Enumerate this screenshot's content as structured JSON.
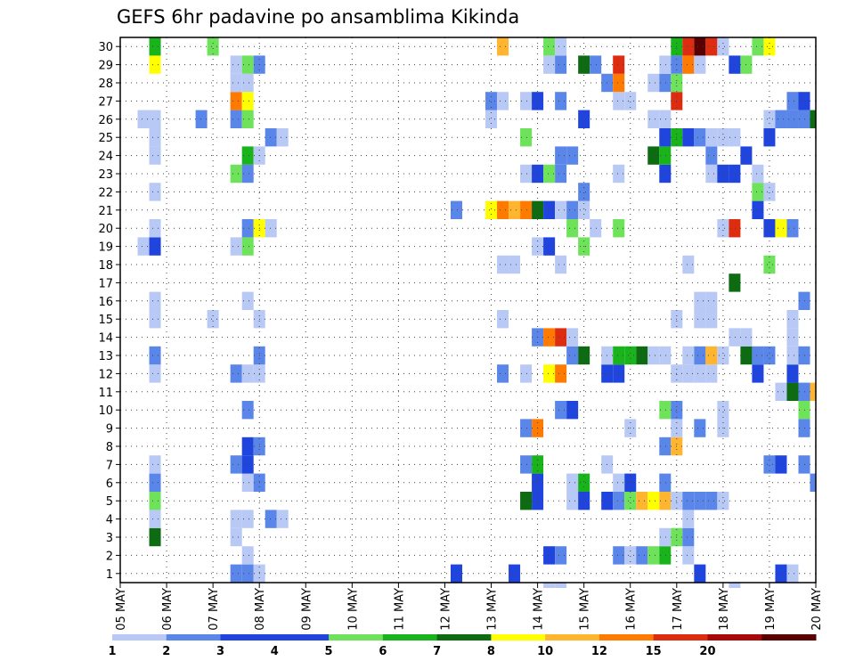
{
  "chart_data": {
    "type": "heatmap",
    "title": "GEFS 6hr padavine po ansamblima Kikinda",
    "y_tick_labels": [
      "1",
      "2",
      "3",
      "4",
      "5",
      "6",
      "7",
      "8",
      "9",
      "10",
      "11",
      "12",
      "13",
      "14",
      "15",
      "16",
      "17",
      "18",
      "19",
      "20",
      "21",
      "22",
      "23",
      "24",
      "25",
      "26",
      "27",
      "28",
      "29",
      "30"
    ],
    "x_tick_labels": [
      "05 MAY",
      "06 MAY",
      "07 MAY",
      "08 MAY",
      "09 MAY",
      "10 MAY",
      "11 MAY",
      "12 MAY",
      "13 MAY",
      "14 MAY",
      "15 MAY",
      "16 MAY",
      "17 MAY",
      "18 MAY",
      "19 MAY",
      "20 MAY"
    ],
    "x_unit": "6-hour step from 05 MAY 00Z",
    "y_unit": "ensemble member",
    "xlim": [
      0,
      60
    ],
    "ylim": [
      0.5,
      30.5
    ],
    "grid": true,
    "legend_position": "bottom",
    "color_scale": {
      "labels": [
        "1",
        "2",
        "3",
        "4",
        "5",
        "6",
        "7",
        "8",
        "10",
        "12",
        "15",
        "20"
      ],
      "colors": [
        "#b9c9f5",
        "#5b86e9",
        "#1f45de",
        "#1f45de",
        "#6ee25a",
        "#19b41c",
        "#0d6b12",
        "#ffff00",
        "#ffb530",
        "#ff7a00",
        "#dd2c10",
        "#a80a0a",
        "#5a0000"
      ]
    },
    "cells": [
      [
        37,
        0,
        1
      ],
      [
        38,
        0,
        1
      ],
      [
        53,
        0,
        1
      ],
      [
        10,
        1,
        2
      ],
      [
        11,
        1,
        2
      ],
      [
        12,
        1,
        1
      ],
      [
        29,
        1,
        3
      ],
      [
        34,
        1,
        3
      ],
      [
        50,
        1,
        3
      ],
      [
        57,
        1,
        3
      ],
      [
        58,
        1,
        1
      ],
      [
        11,
        2,
        1
      ],
      [
        37,
        2,
        4
      ],
      [
        38,
        2,
        2
      ],
      [
        43,
        2,
        2
      ],
      [
        44,
        2,
        1
      ],
      [
        45,
        2,
        2
      ],
      [
        46,
        2,
        5
      ],
      [
        47,
        2,
        6
      ],
      [
        49,
        2,
        1
      ],
      [
        3,
        3,
        7
      ],
      [
        10,
        3,
        1
      ],
      [
        47,
        3,
        1
      ],
      [
        48,
        3,
        5
      ],
      [
        49,
        3,
        2
      ],
      [
        10,
        4,
        1
      ],
      [
        11,
        4,
        1
      ],
      [
        13,
        4,
        2
      ],
      [
        14,
        4,
        1
      ],
      [
        49,
        4,
        1
      ],
      [
        3,
        4,
        1
      ],
      [
        3,
        5,
        5
      ],
      [
        35,
        5,
        7
      ],
      [
        36,
        5,
        3
      ],
      [
        39,
        5,
        1
      ],
      [
        40,
        5,
        3
      ],
      [
        42,
        5,
        3
      ],
      [
        43,
        5,
        2
      ],
      [
        44,
        5,
        5
      ],
      [
        45,
        5,
        10
      ],
      [
        46,
        5,
        8
      ],
      [
        47,
        5,
        10
      ],
      [
        48,
        5,
        1
      ],
      [
        49,
        5,
        2
      ],
      [
        50,
        5,
        2
      ],
      [
        51,
        5,
        2
      ],
      [
        52,
        5,
        1
      ],
      [
        3,
        6,
        2
      ],
      [
        11,
        6,
        1
      ],
      [
        12,
        6,
        2
      ],
      [
        36,
        6,
        3
      ],
      [
        39,
        6,
        1
      ],
      [
        40,
        6,
        6
      ],
      [
        43,
        6,
        1
      ],
      [
        44,
        6,
        3
      ],
      [
        47,
        6,
        2
      ],
      [
        60,
        6,
        2
      ],
      [
        3,
        7,
        1
      ],
      [
        10,
        7,
        2
      ],
      [
        11,
        7,
        3
      ],
      [
        35,
        7,
        2
      ],
      [
        36,
        7,
        6
      ],
      [
        42,
        7,
        1
      ],
      [
        56,
        7,
        2
      ],
      [
        57,
        7,
        3
      ],
      [
        59,
        7,
        2
      ],
      [
        11,
        8,
        3
      ],
      [
        12,
        8,
        2
      ],
      [
        47,
        8,
        2
      ],
      [
        48,
        8,
        10
      ],
      [
        35,
        9,
        2
      ],
      [
        36,
        9,
        14
      ],
      [
        44,
        9,
        1
      ],
      [
        48,
        9,
        1
      ],
      [
        50,
        9,
        2
      ],
      [
        52,
        9,
        1
      ],
      [
        59,
        9,
        2
      ],
      [
        11,
        10,
        2
      ],
      [
        38,
        10,
        2
      ],
      [
        39,
        10,
        3
      ],
      [
        47,
        10,
        5
      ],
      [
        48,
        10,
        2
      ],
      [
        52,
        10,
        1
      ],
      [
        59,
        10,
        5
      ],
      [
        57,
        11,
        1
      ],
      [
        58,
        11,
        1
      ],
      [
        59,
        11,
        1
      ],
      [
        58,
        11,
        7
      ],
      [
        59,
        11,
        2
      ],
      [
        60,
        11,
        10
      ],
      [
        3,
        12,
        1
      ],
      [
        10,
        12,
        2
      ],
      [
        11,
        12,
        1
      ],
      [
        12,
        12,
        1
      ],
      [
        33,
        12,
        2
      ],
      [
        35,
        12,
        1
      ],
      [
        37,
        12,
        8
      ],
      [
        38,
        12,
        12
      ],
      [
        42,
        12,
        3
      ],
      [
        43,
        12,
        3
      ],
      [
        48,
        12,
        1
      ],
      [
        49,
        12,
        1
      ],
      [
        50,
        12,
        1
      ],
      [
        51,
        12,
        1
      ],
      [
        55,
        12,
        3
      ],
      [
        58,
        12,
        3
      ],
      [
        3,
        13,
        2
      ],
      [
        12,
        13,
        2
      ],
      [
        39,
        13,
        2
      ],
      [
        40,
        13,
        7
      ],
      [
        42,
        13,
        1
      ],
      [
        43,
        13,
        6
      ],
      [
        44,
        13,
        6
      ],
      [
        45,
        13,
        7
      ],
      [
        46,
        13,
        1
      ],
      [
        47,
        13,
        1
      ],
      [
        49,
        13,
        1
      ],
      [
        50,
        13,
        2
      ],
      [
        51,
        13,
        10
      ],
      [
        52,
        13,
        1
      ],
      [
        54,
        13,
        7
      ],
      [
        55,
        13,
        2
      ],
      [
        56,
        13,
        2
      ],
      [
        58,
        13,
        1
      ],
      [
        59,
        13,
        2
      ],
      [
        37,
        14,
        12
      ],
      [
        38,
        14,
        15
      ],
      [
        36,
        14,
        2
      ],
      [
        39,
        14,
        1
      ],
      [
        54,
        14,
        1
      ],
      [
        53,
        14,
        1
      ],
      [
        58,
        14,
        1
      ],
      [
        3,
        15,
        1
      ],
      [
        8,
        15,
        1
      ],
      [
        12,
        15,
        1
      ],
      [
        33,
        15,
        1
      ],
      [
        48,
        15,
        1
      ],
      [
        50,
        15,
        1
      ],
      [
        51,
        15,
        1
      ],
      [
        58,
        15,
        1
      ],
      [
        3,
        16,
        1
      ],
      [
        11,
        16,
        1
      ],
      [
        50,
        16,
        1
      ],
      [
        51,
        16,
        1
      ],
      [
        59,
        16,
        2
      ],
      [
        53,
        17,
        7
      ],
      [
        33,
        18,
        1
      ],
      [
        34,
        18,
        1
      ],
      [
        38,
        18,
        1
      ],
      [
        49,
        18,
        1
      ],
      [
        56,
        18,
        5
      ],
      [
        2,
        19,
        1
      ],
      [
        3,
        19,
        3
      ],
      [
        10,
        19,
        1
      ],
      [
        11,
        19,
        5
      ],
      [
        36,
        19,
        1
      ],
      [
        37,
        19,
        3
      ],
      [
        40,
        19,
        5
      ],
      [
        3,
        20,
        1
      ],
      [
        11,
        20,
        2
      ],
      [
        12,
        20,
        8
      ],
      [
        13,
        20,
        1
      ],
      [
        39,
        20,
        5
      ],
      [
        41,
        20,
        1
      ],
      [
        43,
        20,
        5
      ],
      [
        52,
        20,
        1
      ],
      [
        53,
        20,
        15
      ],
      [
        56,
        20,
        3
      ],
      [
        57,
        20,
        8
      ],
      [
        58,
        20,
        2
      ],
      [
        29,
        21,
        2
      ],
      [
        32,
        21,
        8
      ],
      [
        33,
        21,
        12
      ],
      [
        34,
        21,
        10
      ],
      [
        35,
        21,
        12
      ],
      [
        36,
        21,
        7
      ],
      [
        37,
        21,
        3
      ],
      [
        38,
        21,
        1
      ],
      [
        39,
        21,
        2
      ],
      [
        40,
        21,
        1
      ],
      [
        55,
        21,
        3
      ],
      [
        3,
        22,
        1
      ],
      [
        40,
        22,
        2
      ],
      [
        55,
        22,
        5
      ],
      [
        56,
        22,
        1
      ],
      [
        10,
        23,
        5
      ],
      [
        11,
        23,
        2
      ],
      [
        35,
        23,
        1
      ],
      [
        36,
        23,
        3
      ],
      [
        37,
        23,
        5
      ],
      [
        38,
        23,
        2
      ],
      [
        43,
        23,
        1
      ],
      [
        47,
        23,
        3
      ],
      [
        51,
        23,
        1
      ],
      [
        52,
        23,
        3
      ],
      [
        53,
        23,
        3
      ],
      [
        55,
        23,
        1
      ],
      [
        3,
        24,
        1
      ],
      [
        11,
        24,
        6
      ],
      [
        12,
        24,
        1
      ],
      [
        38,
        24,
        2
      ],
      [
        39,
        24,
        2
      ],
      [
        46,
        24,
        7
      ],
      [
        47,
        24,
        6
      ],
      [
        51,
        24,
        2
      ],
      [
        54,
        24,
        3
      ],
      [
        3,
        25,
        1
      ],
      [
        13,
        25,
        2
      ],
      [
        14,
        25,
        1
      ],
      [
        35,
        25,
        5
      ],
      [
        47,
        25,
        3
      ],
      [
        48,
        25,
        6
      ],
      [
        49,
        25,
        3
      ],
      [
        50,
        25,
        2
      ],
      [
        51,
        25,
        1
      ],
      [
        52,
        25,
        1
      ],
      [
        53,
        25,
        1
      ],
      [
        56,
        25,
        3
      ],
      [
        2,
        26,
        1
      ],
      [
        3,
        26,
        1
      ],
      [
        7,
        26,
        2
      ],
      [
        10,
        26,
        2
      ],
      [
        11,
        26,
        5
      ],
      [
        32,
        26,
        1
      ],
      [
        40,
        26,
        3
      ],
      [
        46,
        26,
        1
      ],
      [
        47,
        26,
        1
      ],
      [
        56,
        26,
        1
      ],
      [
        57,
        26,
        2
      ],
      [
        58,
        26,
        2
      ],
      [
        59,
        26,
        2
      ],
      [
        60,
        26,
        7
      ],
      [
        10,
        27,
        12
      ],
      [
        11,
        27,
        8
      ],
      [
        32,
        27,
        2
      ],
      [
        33,
        27,
        1
      ],
      [
        35,
        27,
        1
      ],
      [
        36,
        27,
        3
      ],
      [
        38,
        27,
        2
      ],
      [
        43,
        27,
        1
      ],
      [
        44,
        27,
        1
      ],
      [
        48,
        27,
        15
      ],
      [
        58,
        27,
        2
      ],
      [
        59,
        27,
        3
      ],
      [
        10,
        28,
        1
      ],
      [
        11,
        28,
        1
      ],
      [
        42,
        28,
        2
      ],
      [
        43,
        28,
        12
      ],
      [
        46,
        28,
        1
      ],
      [
        47,
        28,
        2
      ],
      [
        48,
        28,
        5
      ],
      [
        3,
        29,
        8
      ],
      [
        10,
        29,
        1
      ],
      [
        11,
        29,
        5
      ],
      [
        12,
        29,
        2
      ],
      [
        37,
        29,
        1
      ],
      [
        38,
        29,
        2
      ],
      [
        40,
        29,
        7
      ],
      [
        41,
        29,
        2
      ],
      [
        43,
        29,
        15
      ],
      [
        47,
        29,
        1
      ],
      [
        48,
        29,
        2
      ],
      [
        49,
        29,
        12
      ],
      [
        50,
        29,
        1
      ],
      [
        53,
        29,
        3
      ],
      [
        54,
        29,
        5
      ],
      [
        3,
        30,
        6
      ],
      [
        8,
        30,
        5
      ],
      [
        33,
        30,
        10
      ],
      [
        37,
        30,
        5
      ],
      [
        38,
        30,
        1
      ],
      [
        48,
        30,
        6
      ],
      [
        49,
        30,
        15
      ],
      [
        50,
        30,
        20
      ],
      [
        51,
        30,
        15
      ],
      [
        52,
        30,
        1
      ],
      [
        55,
        30,
        5
      ],
      [
        56,
        30,
        8
      ],
      [
        11,
        31,
        3
      ],
      [
        12,
        31,
        1
      ],
      [
        38,
        31,
        1
      ],
      [
        40,
        31,
        2
      ],
      [
        53,
        31,
        2
      ],
      [
        55,
        31,
        1
      ],
      [
        56,
        31,
        6
      ],
      [
        57,
        31,
        2
      ],
      [
        58,
        31,
        1
      ],
      [
        59,
        31,
        3
      ],
      [
        32,
        -1,
        2
      ],
      [
        33,
        -1,
        1
      ],
      [
        42,
        -1,
        2
      ]
    ]
  }
}
